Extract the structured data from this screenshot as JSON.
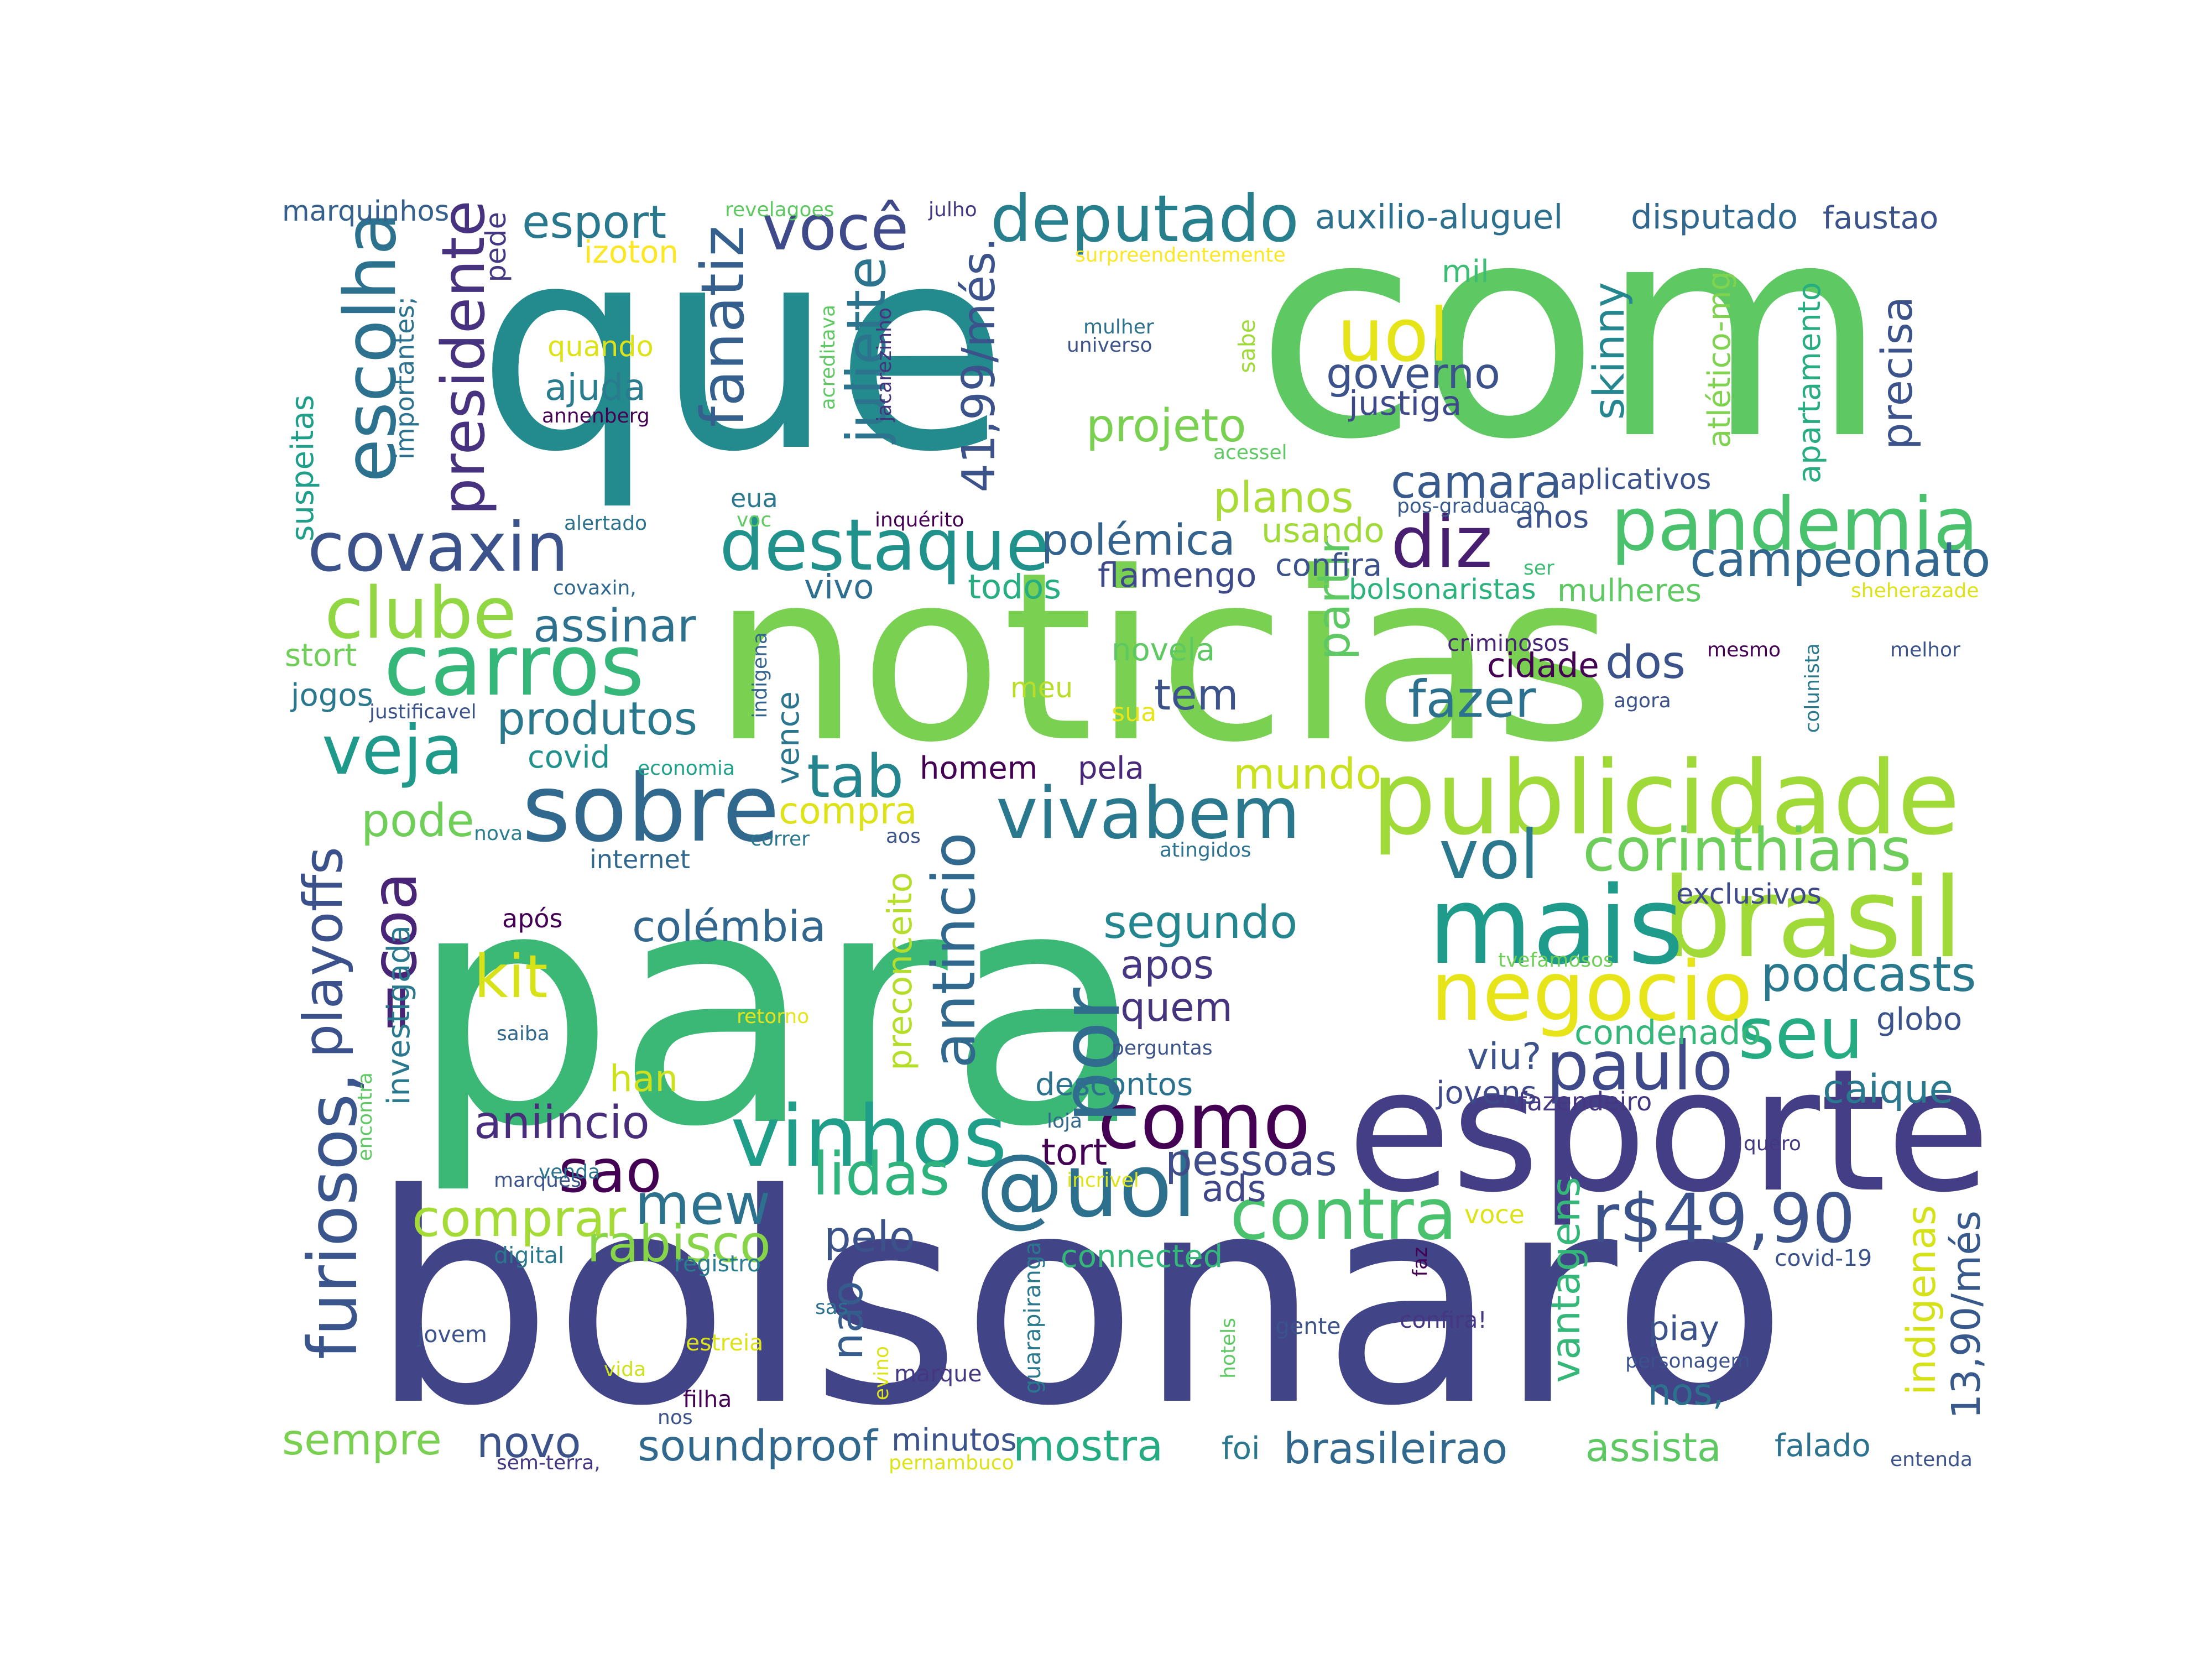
{
  "words": [
    {
      "text": "para",
      "color": "#3cb876"
    },
    {
      "text": "que",
      "color": "#238a8d"
    },
    {
      "text": "com",
      "color": "#5ec962"
    },
    {
      "text": "noticias",
      "color": "#7ad151"
    },
    {
      "text": "bolsonaro",
      "color": "#414487"
    },
    {
      "text": "esporte",
      "color": "#433e85"
    },
    {
      "text": "publicidade",
      "color": "#a0da39"
    },
    {
      "text": "brasil",
      "color": "#a0da39"
    },
    {
      "text": "mais",
      "color": "#1e9b8a"
    },
    {
      "text": "negocio",
      "color": "#e7e419"
    },
    {
      "text": "vinhos",
      "color": "#1f9e89"
    },
    {
      "text": "@uol",
      "color": "#2d708e"
    },
    {
      "text": "como",
      "color": "#440154"
    },
    {
      "text": "sobre",
      "color": "#31688e"
    },
    {
      "text": "pandemia",
      "color": "#4ac16d"
    },
    {
      "text": "destaque",
      "color": "#21918c"
    },
    {
      "text": "carros",
      "color": "#35b779"
    },
    {
      "text": "deputado",
      "color": "#277f8e"
    },
    {
      "text": "vivabem",
      "color": "#2a788e"
    },
    {
      "text": "covaxin",
      "color": "#3b528b"
    },
    {
      "text": "clube",
      "color": "#90d743"
    },
    {
      "text": "veja",
      "color": "#1f9a8a"
    },
    {
      "text": "diz",
      "color": "#481f70"
    },
    {
      "text": "uol",
      "color": "#e5e419"
    },
    {
      "text": "escolha",
      "color": "#2c728e"
    },
    {
      "text": "presidente",
      "color": "#46327e"
    },
    {
      "text": "você",
      "color": "#3e4a89"
    },
    {
      "text": "fanatiz",
      "color": "#355f8d"
    },
    {
      "text": "juliette",
      "color": "#2c738e"
    },
    {
      "text": "41,99/més.",
      "color": "#3b528b"
    },
    {
      "text": "corinthians",
      "color": "#6ccd5a"
    },
    {
      "text": "vol",
      "color": "#2a788e"
    },
    {
      "text": "seu",
      "color": "#25ac82"
    },
    {
      "text": "paulo",
      "color": "#3e4a89"
    },
    {
      "text": "podcasts",
      "color": "#29798e"
    },
    {
      "text": "contra",
      "color": "#4ac16d"
    },
    {
      "text": "r$49,90",
      "color": "#3b528b"
    },
    {
      "text": "por",
      "color": "#2f6c8e"
    },
    {
      "text": "antincio",
      "color": "#31688e"
    },
    {
      "text": "tab",
      "color": "#25858e"
    },
    {
      "text": "furiosos,",
      "color": "#3a548c"
    },
    {
      "text": "=coa",
      "color": "#482576"
    },
    {
      "text": "playoffs",
      "color": "#3b518b"
    },
    {
      "text": "kit",
      "color": "#d8e219"
    },
    {
      "text": "sao",
      "color": "#440154"
    },
    {
      "text": "mew",
      "color": "#2c718e"
    },
    {
      "text": "lidas",
      "color": "#2eb37c"
    },
    {
      "text": "rabisco",
      "color": "#86d549"
    },
    {
      "text": "comprar",
      "color": "#a5db36"
    },
    {
      "text": "aniincio",
      "color": "#472d7b"
    },
    {
      "text": "colémbia",
      "color": "#31668e"
    },
    {
      "text": "segundo",
      "color": "#24868e"
    },
    {
      "text": "apos",
      "color": "#453781"
    },
    {
      "text": "quem",
      "color": "#46337e"
    },
    {
      "text": "pessoas",
      "color": "#3e4c8a"
    },
    {
      "text": "tort",
      "color": "#440154"
    },
    {
      "text": "ads",
      "color": "#3f4788"
    },
    {
      "text": "pelo",
      "color": "#3b528b"
    },
    {
      "text": "descontos",
      "color": "#2c728e"
    },
    {
      "text": "han",
      "color": "#cde11d"
    },
    {
      "text": "preconceito",
      "color": "#b5de2b"
    },
    {
      "text": "nao",
      "color": "#365c8d"
    },
    {
      "text": "compra",
      "color": "#dde318"
    },
    {
      "text": "pode",
      "color": "#6ece58"
    },
    {
      "text": "produtos",
      "color": "#2a788e"
    },
    {
      "text": "assinar",
      "color": "#2c728e"
    },
    {
      "text": "mundo",
      "color": "#cae11f"
    },
    {
      "text": "tem",
      "color": "#3b528b"
    },
    {
      "text": "novela",
      "color": "#5ec962"
    },
    {
      "text": "meu",
      "color": "#b8de29"
    },
    {
      "text": "sua",
      "color": "#e7e419"
    },
    {
      "text": "homem",
      "color": "#440154"
    },
    {
      "text": "pela",
      "color": "#482878"
    },
    {
      "text": "vence",
      "color": "#2a768e"
    },
    {
      "text": "indigena",
      "color": "#33638d"
    },
    {
      "text": "partir",
      "color": "#5ec962"
    },
    {
      "text": "fazer",
      "color": "#2c728e"
    },
    {
      "text": "dos",
      "color": "#3b528b"
    },
    {
      "text": "cidade",
      "color": "#440154"
    },
    {
      "text": "criminosos",
      "color": "#482475"
    },
    {
      "text": "campeonato",
      "color": "#31668e"
    },
    {
      "text": "mulheres",
      "color": "#5ec962"
    },
    {
      "text": "bolsonaristas",
      "color": "#2db27d"
    },
    {
      "text": "confira",
      "color": "#3b528b"
    },
    {
      "text": "anos",
      "color": "#3b528b"
    },
    {
      "text": "usando",
      "color": "#a0da39"
    },
    {
      "text": "polémica",
      "color": "#33638d"
    },
    {
      "text": "flamengo",
      "color": "#3e4989"
    },
    {
      "text": "todos",
      "color": "#26ad81"
    },
    {
      "text": "vivo",
      "color": "#2e6e8e"
    },
    {
      "text": "planos",
      "color": "#a8db34"
    },
    {
      "text": "camara",
      "color": "#38598c"
    },
    {
      "text": "projeto",
      "color": "#7ad151"
    },
    {
      "text": "governo",
      "color": "#3b528b"
    },
    {
      "text": "justiga",
      "color": "#3e4989"
    },
    {
      "text": "skinny",
      "color": "#24868e"
    },
    {
      "text": "precisa",
      "color": "#3b528b"
    },
    {
      "text": "apartamento",
      "color": "#27ad81"
    },
    {
      "text": "atlético-mg",
      "color": "#7fd34e"
    },
    {
      "text": "aplicativos",
      "color": "#3b528b"
    },
    {
      "text": "pos-graduacao",
      "color": "#38598c"
    },
    {
      "text": "mil",
      "color": "#3dbc74"
    },
    {
      "text": "esport",
      "color": "#2a788e"
    },
    {
      "text": "izoton",
      "color": "#fde725"
    },
    {
      "text": "auxilio-aluguel",
      "color": "#2d708e"
    },
    {
      "text": "disputado",
      "color": "#31688e"
    },
    {
      "text": "faustao",
      "color": "#3b528b"
    },
    {
      "text": "marquinhos",
      "color": "#355f8d"
    },
    {
      "text": "revelagoes",
      "color": "#5ec962"
    },
    {
      "text": "julho",
      "color": "#453781"
    },
    {
      "text": "surpreendentemente",
      "color": "#fde725"
    },
    {
      "text": "pede",
      "color": "#453781"
    },
    {
      "text": "quando",
      "color": "#dde318"
    },
    {
      "text": "ajuda",
      "color": "#287c8e"
    },
    {
      "text": "annenberg",
      "color": "#440154"
    },
    {
      "text": "importantes;",
      "color": "#2c728e"
    },
    {
      "text": "suspeitas",
      "color": "#1f9e89"
    },
    {
      "text": "mulher",
      "color": "#2c728e"
    },
    {
      "text": "universo",
      "color": "#3b528b"
    },
    {
      "text": "sabe",
      "color": "#a0da39"
    },
    {
      "text": "acessel",
      "color": "#5ec962"
    },
    {
      "text": "acreditava",
      "color": "#5ec962"
    },
    {
      "text": "jacarezinho",
      "color": "#46337e"
    },
    {
      "text": "eua",
      "color": "#2a788e"
    },
    {
      "text": "voc",
      "color": "#5ec962"
    },
    {
      "text": "inquérito",
      "color": "#440154"
    },
    {
      "text": "alertado",
      "color": "#2c728e"
    },
    {
      "text": "covaxin,",
      "color": "#31688e"
    },
    {
      "text": "ser",
      "color": "#3dbc74"
    },
    {
      "text": "sheherazade",
      "color": "#dde318"
    },
    {
      "text": "stort",
      "color": "#6ece58"
    },
    {
      "text": "jogos",
      "color": "#2a788e"
    },
    {
      "text": "justificavel",
      "color": "#3b528b"
    },
    {
      "text": "covid",
      "color": "#21918c"
    },
    {
      "text": "economia",
      "color": "#1fa088"
    },
    {
      "text": "nova",
      "color": "#287c8e"
    },
    {
      "text": "internet",
      "color": "#31688e"
    },
    {
      "text": "correr",
      "color": "#2a788e"
    },
    {
      "text": "aos",
      "color": "#3b528b"
    },
    {
      "text": "atingidos",
      "color": "#2c728e"
    },
    {
      "text": "mesmo",
      "color": "#440154"
    },
    {
      "text": "melhor",
      "color": "#3b528b"
    },
    {
      "text": "agora",
      "color": "#3b528b"
    },
    {
      "text": "colunista",
      "color": "#2a788e"
    },
    {
      "text": "exclusivos",
      "color": "#3e4989"
    },
    {
      "text": "após",
      "color": "#440154"
    },
    {
      "text": "saiba",
      "color": "#31688e"
    },
    {
      "text": "retorno",
      "color": "#e5e419"
    },
    {
      "text": "perguntas",
      "color": "#3b528b"
    },
    {
      "text": "tvefamosos",
      "color": "#6ece58"
    },
    {
      "text": "viu?",
      "color": "#3b528b"
    },
    {
      "text": "jovens",
      "color": "#3e4989"
    },
    {
      "text": "fazendeiro",
      "color": "#453781"
    },
    {
      "text": "caique",
      "color": "#2a788e"
    },
    {
      "text": "globo",
      "color": "#3b528b"
    },
    {
      "text": "condenado",
      "color": "#35b779"
    },
    {
      "text": "vantagens",
      "color": "#35b779"
    },
    {
      "text": "indigenas",
      "color": "#d5e21a"
    },
    {
      "text": "13,90/més",
      "color": "#38598c"
    },
    {
      "text": "nos,",
      "color": "#2c728e"
    },
    {
      "text": "piay",
      "color": "#3b528b"
    },
    {
      "text": "personagem",
      "color": "#3b528b"
    },
    {
      "text": "assista",
      "color": "#5ec962"
    },
    {
      "text": "falado",
      "color": "#2c728e"
    },
    {
      "text": "entenda",
      "color": "#3b528b"
    },
    {
      "text": "brasileirao",
      "color": "#31688e"
    },
    {
      "text": "foi",
      "color": "#2a788e"
    },
    {
      "text": "mostra",
      "color": "#25ab82"
    },
    {
      "text": "minutos",
      "color": "#3b528b"
    },
    {
      "text": "soundproof",
      "color": "#31688e"
    },
    {
      "text": "novo",
      "color": "#3b528b"
    },
    {
      "text": "sempre",
      "color": "#7ad151"
    },
    {
      "text": "investigada",
      "color": "#2a788e"
    },
    {
      "text": "encontra",
      "color": "#5ec962"
    },
    {
      "text": "marques",
      "color": "#3b528b"
    },
    {
      "text": "venda",
      "color": "#2c728e"
    },
    {
      "text": "digital",
      "color": "#2a788e"
    },
    {
      "text": "registro",
      "color": "#287c8e"
    },
    {
      "text": "jovem",
      "color": "#3b528b"
    },
    {
      "text": "estreia",
      "color": "#dde318"
    },
    {
      "text": "vida",
      "color": "#cde11d"
    },
    {
      "text": "filha",
      "color": "#440154"
    },
    {
      "text": "nos",
      "color": "#3b528b"
    },
    {
      "text": "sem-terra,",
      "color": "#453781"
    },
    {
      "text": "pernambuco",
      "color": "#dde318"
    },
    {
      "text": "marque",
      "color": "#453781"
    },
    {
      "text": "evino",
      "color": "#dde318"
    },
    {
      "text": "sas",
      "color": "#2c728e"
    },
    {
      "text": "guarapiranga",
      "color": "#2a788e"
    },
    {
      "text": "connected",
      "color": "#35b779"
    },
    {
      "text": "loja",
      "color": "#31688e"
    },
    {
      "text": "incrivel",
      "color": "#dde318"
    },
    {
      "text": "hotels",
      "color": "#5ec962"
    },
    {
      "text": "gente",
      "color": "#3b528b"
    },
    {
      "text": "faz",
      "color": "#440154"
    },
    {
      "text": "confira!",
      "color": "#453781"
    },
    {
      "text": "voce",
      "color": "#dde318"
    },
    {
      "text": "covid-19",
      "color": "#3b528b"
    },
    {
      "text": "quero",
      "color": "#453781"
    }
  ]
}
